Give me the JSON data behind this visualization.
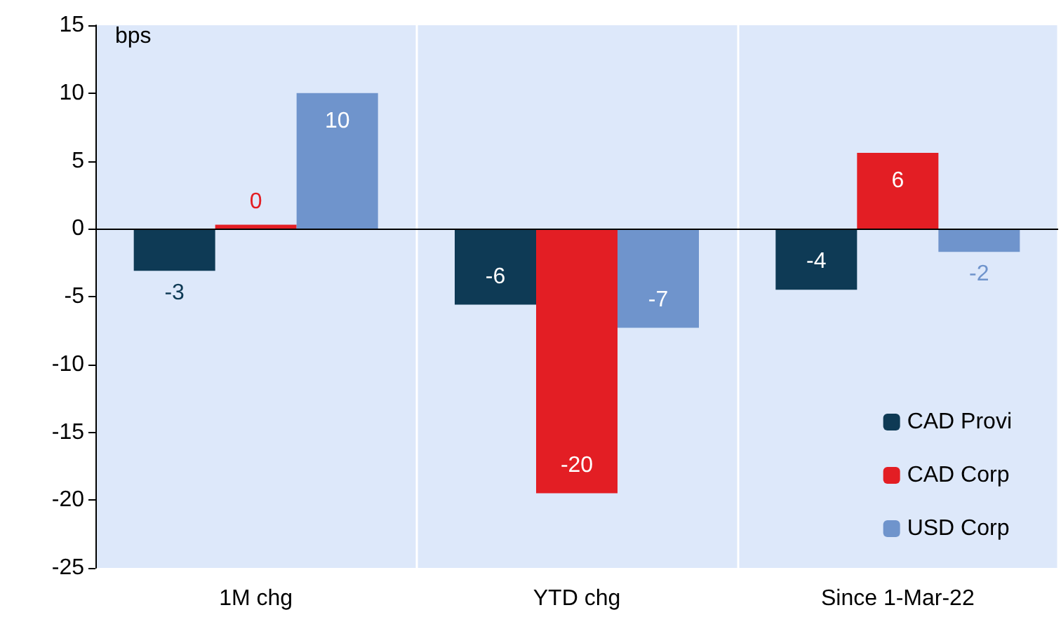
{
  "chart_data": {
    "type": "bar",
    "ylabel": "bps",
    "categories": [
      "1M chg",
      "YTD chg",
      "Since 1-Mar-22"
    ],
    "series": [
      {
        "name": "CAD Provi",
        "color": "#0e3a55",
        "values": [
          -3.1,
          -5.6,
          -4.5
        ],
        "value_labels": [
          "-3",
          "-6",
          "-4"
        ]
      },
      {
        "name": "CAD Corp",
        "color": "#e31e24",
        "values": [
          0.3,
          -19.5,
          5.6
        ],
        "value_labels": [
          "0",
          "-20",
          "6"
        ]
      },
      {
        "name": "USD Corp",
        "color": "#6f94cc",
        "values": [
          10,
          -7.3,
          -1.7
        ],
        "value_labels": [
          "10",
          "-7",
          "-2"
        ]
      }
    ],
    "ylim": [
      -25,
      15
    ],
    "yticks": [
      -25,
      -20,
      -15,
      -10,
      -5,
      0,
      5,
      10,
      15
    ],
    "grid": "x",
    "legend": "bottom right"
  }
}
